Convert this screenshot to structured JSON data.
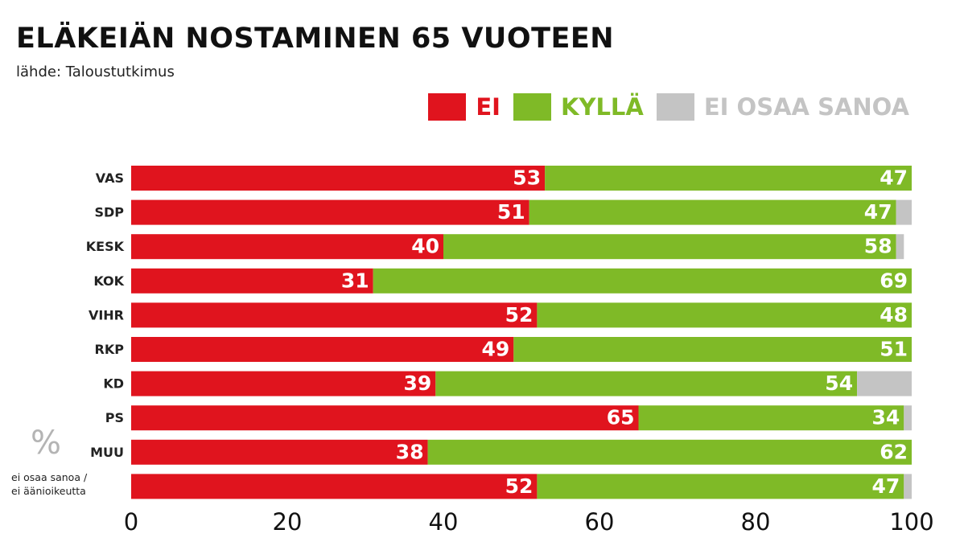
{
  "title": "ELÄKEIÄN NOSTAMINEN 65 VUOTEEN",
  "source": "lähde: Taloustutkimus",
  "note": {
    "symbol": "%",
    "line1": "ei osaa sanoa /",
    "line2": "ei äänioikeutta"
  },
  "chart_data": {
    "type": "bar",
    "orientation": "horizontal",
    "stacked": true,
    "title": "ELÄKEIÄN NOSTAMINEN 65 VUOTEEN",
    "xlabel": "",
    "ylabel": "",
    "xlim": [
      0,
      100
    ],
    "x_ticks": [
      0,
      20,
      40,
      60,
      80,
      100
    ],
    "legend_position": "top-right",
    "categories": [
      "VAS",
      "SDP",
      "KESK",
      "KOK",
      "VIHR",
      "RKP",
      "KD",
      "PS",
      "MUU",
      "ei osaa sanoa / ei äänioikeutta"
    ],
    "category_labels": [
      "VAS",
      "SDP",
      "KESK",
      "KOK",
      "VIHR",
      "RKP",
      "KD",
      "PS",
      "MUU",
      ""
    ],
    "series": [
      {
        "name": "EI",
        "color": "#e0141e",
        "values": [
          53,
          51,
          40,
          31,
          52,
          49,
          39,
          65,
          38,
          52
        ]
      },
      {
        "name": "KYLLÄ",
        "color": "#7fba27",
        "values": [
          47,
          47,
          58,
          69,
          48,
          51,
          54,
          34,
          62,
          47
        ]
      },
      {
        "name": "EI OSAA SANOA",
        "color": "#c4c4c4",
        "values": [
          0,
          2,
          1,
          0,
          0,
          0,
          7,
          1,
          0,
          1
        ]
      }
    ]
  }
}
